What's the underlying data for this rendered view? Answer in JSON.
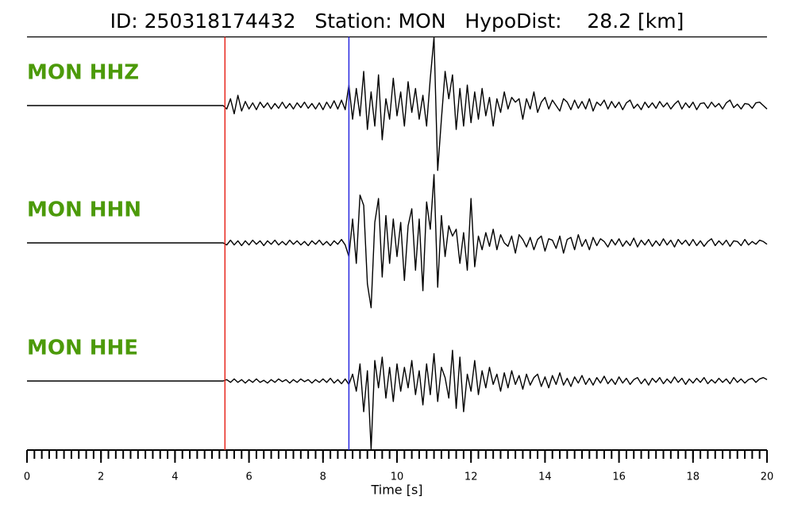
{
  "chart_data": {
    "type": "seismogram",
    "title": "ID: 250318174432   Station: MON   HypoDist:    28.2 [km]",
    "xlabel": "Time [s]",
    "xlim": [
      0,
      20
    ],
    "xticks": [
      0,
      2,
      4,
      6,
      8,
      10,
      12,
      14,
      16,
      18,
      20
    ],
    "minor_tick_step": 0.2,
    "ylim": [
      -1,
      1
    ],
    "vlines": [
      {
        "x": 5.35,
        "color": "#e8281e"
      },
      {
        "x": 8.7,
        "color": "#2a2ae0"
      }
    ],
    "x": [
      0,
      0.1,
      0.2,
      0.3,
      0.4,
      0.5,
      0.6,
      0.7,
      0.8,
      0.9,
      1,
      1.1,
      1.2,
      1.3,
      1.4,
      1.5,
      1.6,
      1.7,
      1.8,
      1.9,
      2,
      2.1,
      2.2,
      2.3,
      2.4,
      2.5,
      2.6,
      2.7,
      2.8,
      2.9,
      3,
      3.1,
      3.2,
      3.3,
      3.4,
      3.5,
      3.6,
      3.7,
      3.8,
      3.9,
      4,
      4.1,
      4.2,
      4.3,
      4.4,
      4.5,
      4.6,
      4.7,
      4.8,
      4.9,
      5,
      5.1,
      5.2,
      5.3,
      5.4,
      5.5,
      5.6,
      5.7,
      5.8,
      5.9,
      6,
      6.1,
      6.2,
      6.3,
      6.4,
      6.5,
      6.6,
      6.7,
      6.8,
      6.9,
      7,
      7.1,
      7.2,
      7.3,
      7.4,
      7.5,
      7.6,
      7.7,
      7.8,
      7.9,
      8,
      8.1,
      8.2,
      8.3,
      8.4,
      8.5,
      8.6,
      8.7,
      8.8,
      8.9,
      9,
      9.1,
      9.2,
      9.3,
      9.4,
      9.5,
      9.6,
      9.7,
      9.8,
      9.9,
      10,
      10.1,
      10.2,
      10.3,
      10.4,
      10.5,
      10.6,
      10.7,
      10.8,
      10.9,
      11,
      11.1,
      11.2,
      11.3,
      11.4,
      11.5,
      11.6,
      11.7,
      11.8,
      11.9,
      12,
      12.1,
      12.2,
      12.3,
      12.4,
      12.5,
      12.6,
      12.7,
      12.8,
      12.9,
      13,
      13.1,
      13.2,
      13.3,
      13.4,
      13.5,
      13.6,
      13.7,
      13.8,
      13.9,
      14,
      14.1,
      14.2,
      14.3,
      14.4,
      14.5,
      14.6,
      14.7,
      14.8,
      14.9,
      15,
      15.1,
      15.2,
      15.3,
      15.4,
      15.5,
      15.6,
      15.7,
      15.8,
      15.9,
      16,
      16.1,
      16.2,
      16.3,
      16.4,
      16.5,
      16.6,
      16.7,
      16.8,
      16.9,
      17,
      17.1,
      17.2,
      17.3,
      17.4,
      17.5,
      17.6,
      17.7,
      17.8,
      17.9,
      18,
      18.1,
      18.2,
      18.3,
      18.4,
      18.5,
      18.6,
      18.7,
      18.8,
      18.9,
      19,
      19.1,
      19.2,
      19.3,
      19.4,
      19.5,
      19.6,
      19.7,
      19.8,
      19.9,
      20
    ],
    "series": [
      {
        "name": "MON HHZ",
        "color": "#4c9a0a",
        "values": [
          0,
          0,
          0,
          0,
          0,
          0,
          0,
          0,
          0,
          0,
          0,
          0,
          0,
          0,
          0,
          0,
          0,
          0,
          0,
          0,
          0,
          0,
          0,
          0,
          0,
          0,
          0,
          0,
          0,
          0,
          0,
          0,
          0,
          0,
          0,
          0,
          0,
          0,
          0,
          0,
          0,
          0,
          0,
          0,
          0,
          0,
          0,
          0,
          0,
          0,
          0,
          0,
          0,
          0,
          -0.05,
          0.1,
          -0.12,
          0.15,
          -0.08,
          0.06,
          -0.05,
          0.04,
          -0.06,
          0.05,
          -0.03,
          0.04,
          -0.05,
          0.03,
          -0.04,
          0.05,
          -0.04,
          0.03,
          -0.05,
          0.04,
          -0.03,
          0.05,
          -0.04,
          0.03,
          -0.05,
          0.04,
          -0.06,
          0.05,
          -0.04,
          0.07,
          -0.05,
          0.08,
          -0.06,
          0.3,
          -0.2,
          0.25,
          -0.15,
          0.5,
          -0.35,
          0.2,
          -0.3,
          0.45,
          -0.5,
          0.1,
          -0.2,
          0.4,
          -0.15,
          0.2,
          -0.3,
          0.35,
          -0.1,
          0.25,
          -0.2,
          0.15,
          -0.3,
          0.4,
          1.0,
          -0.95,
          -0.2,
          0.5,
          0.1,
          0.45,
          -0.35,
          0.25,
          -0.3,
          0.3,
          -0.25,
          0.2,
          -0.2,
          0.25,
          -0.15,
          0.12,
          -0.3,
          0.1,
          -0.1,
          0.2,
          -0.05,
          0.12,
          0.05,
          0.1,
          -0.2,
          0.1,
          -0.05,
          0.2,
          -0.1,
          0.05,
          0.12,
          -0.05,
          0.08,
          0,
          -0.08,
          0.1,
          0.05,
          -0.06,
          0.08,
          -0.04,
          0.06,
          -0.05,
          0.1,
          -0.08,
          0.05,
          0,
          0.08,
          -0.05,
          0.06,
          -0.03,
          0.05,
          -0.06,
          0.04,
          0.08,
          -0.04,
          0.02,
          -0.06,
          0.05,
          -0.03,
          0.04,
          -0.04,
          0.06,
          -0.02,
          0.04,
          -0.05,
          0.02,
          0.07,
          -0.05,
          0.04,
          -0.03,
          0.05,
          -0.06,
          0.03,
          0.04,
          -0.04,
          0.05,
          -0.02,
          0.03,
          -0.05,
          0.04,
          0.08,
          -0.03,
          0.02,
          -0.05,
          0.03,
          0.02,
          -0.04,
          0.04,
          0.05,
          0,
          -0.05
        ]
      },
      {
        "name": "MON HHN",
        "color": "#4c9a0a",
        "values": [
          0,
          0,
          0,
          0,
          0,
          0,
          0,
          0,
          0,
          0,
          0,
          0,
          0,
          0,
          0,
          0,
          0,
          0,
          0,
          0,
          0,
          0,
          0,
          0,
          0,
          0,
          0,
          0,
          0,
          0,
          0,
          0,
          0,
          0,
          0,
          0,
          0,
          0,
          0,
          0,
          0,
          0,
          0,
          0,
          0,
          0,
          0,
          0,
          0,
          0,
          0,
          0,
          0,
          0,
          -0.03,
          0.04,
          -0.03,
          0.03,
          -0.04,
          0.03,
          -0.03,
          0.04,
          -0.02,
          0.03,
          -0.04,
          0.03,
          -0.02,
          0.04,
          -0.03,
          0.02,
          -0.03,
          0.04,
          -0.02,
          0.03,
          -0.03,
          0.02,
          -0.04,
          0.03,
          -0.02,
          0.04,
          -0.03,
          0.02,
          -0.04,
          0.03,
          -0.02,
          0.05,
          -0.03,
          -0.2,
          0.35,
          -0.3,
          0.7,
          0.55,
          -0.6,
          -0.95,
          0.3,
          0.65,
          -0.5,
          0.4,
          -0.3,
          0.35,
          -0.2,
          0.3,
          -0.55,
          0.25,
          0.5,
          -0.4,
          0.35,
          -0.7,
          0.6,
          0.2,
          1.0,
          -0.65,
          0.4,
          -0.2,
          0.25,
          0.1,
          0.2,
          -0.3,
          0.15,
          -0.4,
          0.65,
          -0.35,
          0.1,
          -0.1,
          0.15,
          -0.05,
          0.2,
          -0.1,
          0.12,
          0,
          -0.05,
          0.1,
          -0.15,
          0.12,
          0.05,
          -0.06,
          0.08,
          -0.1,
          0.05,
          0.1,
          -0.12,
          0.06,
          0.04,
          -0.08,
          0.1,
          -0.15,
          0.05,
          0.08,
          -0.1,
          0.12,
          -0.05,
          0.05,
          -0.1,
          0.08,
          -0.04,
          0.06,
          0.02,
          -0.06,
          0.05,
          -0.03,
          0.06,
          -0.05,
          0.03,
          -0.04,
          0.07,
          -0.06,
          0.04,
          -0.03,
          0.05,
          -0.05,
          0.03,
          -0.04,
          0.06,
          -0.03,
          0.04,
          -0.06,
          0.05,
          -0.02,
          0.04,
          -0.04,
          0.05,
          -0.04,
          0.03,
          -0.05,
          0.02,
          0.06,
          -0.04,
          0.03,
          -0.03,
          0.04,
          -0.05,
          0.03,
          0.02,
          -0.04,
          0.05,
          -0.03,
          0.02,
          -0.02,
          0.04,
          0.02,
          -0.02
        ]
      },
      {
        "name": "MON HHE",
        "color": "#4c9a0a",
        "values": [
          0,
          0,
          0,
          0,
          0,
          0,
          0,
          0,
          0,
          0,
          0,
          0,
          0,
          0,
          0,
          0,
          0,
          0,
          0,
          0,
          0,
          0,
          0,
          0,
          0,
          0,
          0,
          0,
          0,
          0,
          0,
          0,
          0,
          0,
          0,
          0,
          0,
          0,
          0,
          0,
          0,
          0,
          0,
          0,
          0,
          0,
          0,
          0,
          0,
          0,
          0,
          0,
          0,
          0,
          0.02,
          -0.02,
          0.03,
          -0.02,
          0.02,
          -0.03,
          0.02,
          -0.02,
          0.03,
          -0.02,
          0.01,
          -0.03,
          0.02,
          -0.02,
          0.03,
          -0.01,
          0.02,
          -0.03,
          0.02,
          -0.02,
          0.03,
          -0.01,
          0.02,
          -0.03,
          0.02,
          -0.02,
          0.03,
          -0.02,
          0.04,
          -0.03,
          0.02,
          -0.04,
          0.03,
          -0.05,
          0.1,
          -0.15,
          0.25,
          -0.45,
          0.15,
          -1.0,
          0.3,
          -0.1,
          0.35,
          -0.25,
          0.2,
          -0.3,
          0.25,
          -0.15,
          0.2,
          -0.1,
          0.3,
          -0.2,
          0.15,
          -0.35,
          0.25,
          -0.2,
          0.4,
          -0.3,
          0.2,
          0.05,
          -0.25,
          0.45,
          -0.4,
          0.35,
          -0.45,
          0.1,
          -0.15,
          0.3,
          -0.2,
          0.15,
          -0.1,
          0.2,
          -0.05,
          0.1,
          -0.15,
          0.12,
          -0.1,
          0.15,
          -0.05,
          0.08,
          -0.12,
          0.1,
          -0.06,
          0.05,
          0.1,
          -0.08,
          0.06,
          -0.1,
          0.08,
          -0.05,
          0.12,
          -0.06,
          0.04,
          -0.08,
          0.06,
          -0.03,
          0.08,
          -0.05,
          0.04,
          -0.06,
          0.05,
          -0.03,
          0.07,
          -0.04,
          0.03,
          -0.05,
          0.06,
          -0.03,
          0.04,
          -0.05,
          0.02,
          0.05,
          -0.04,
          0.03,
          -0.06,
          0.04,
          -0.02,
          0.05,
          -0.04,
          0.03,
          -0.03,
          0.06,
          -0.02,
          0.04,
          -0.05,
          0.03,
          -0.03,
          0.04,
          -0.02,
          0.05,
          -0.04,
          0.02,
          -0.03,
          0.04,
          -0.02,
          0.03,
          -0.04,
          0.05,
          -0.02,
          0.03,
          -0.03,
          0.02,
          0.04,
          -0.02,
          0.03,
          0.05,
          0.02
        ]
      }
    ]
  }
}
